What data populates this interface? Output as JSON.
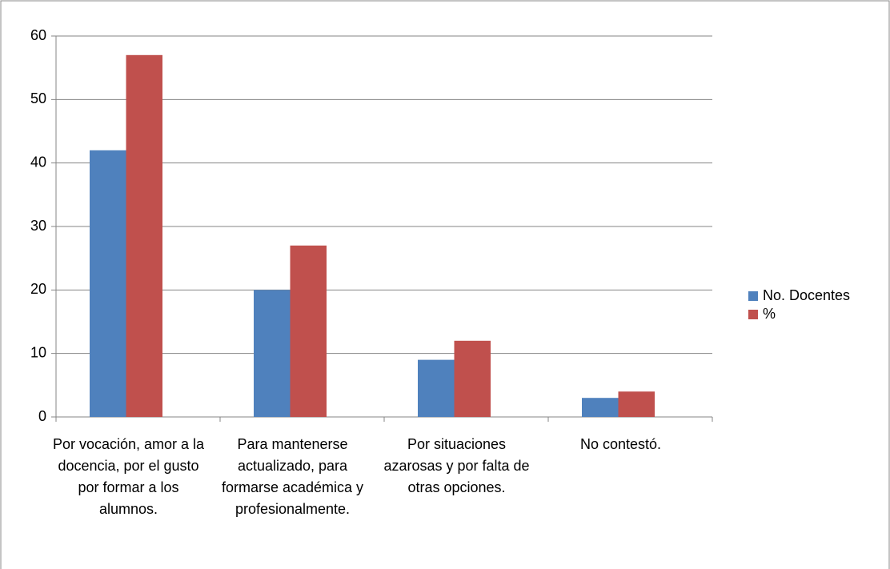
{
  "chart_data": {
    "type": "bar",
    "categories": [
      "Por vocación, amor a la docencia, por el gusto por formar a los alumnos.",
      "Para mantenerse actualizado, para formarse académica y profesionalmente.",
      "Por situaciones azarosas y por falta de otras opciones.",
      "No contestó."
    ],
    "series": [
      {
        "name": "No. Docentes",
        "color": "#4f81bd",
        "values": [
          42,
          20,
          9,
          3
        ]
      },
      {
        "name": "%",
        "color": "#c0504d",
        "values": [
          57,
          27,
          12,
          4
        ]
      }
    ],
    "ylim": [
      0,
      60
    ],
    "yticks": [
      0,
      10,
      20,
      30,
      40,
      50,
      60
    ],
    "grid": true,
    "legend": "right"
  }
}
